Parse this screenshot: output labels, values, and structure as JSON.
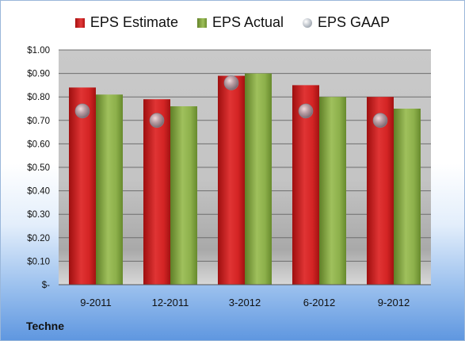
{
  "chart_data": {
    "type": "bar",
    "categories": [
      "9-2011",
      "12-2011",
      "3-2012",
      "6-2012",
      "9-2012"
    ],
    "series": [
      {
        "name": "EPS Estimate",
        "type": "bar",
        "color": "#c41e1e",
        "values": [
          0.84,
          0.79,
          0.89,
          0.85,
          0.8
        ]
      },
      {
        "name": "EPS Actual",
        "type": "bar",
        "color": "#86a846",
        "values": [
          0.81,
          0.76,
          0.9,
          0.8,
          0.75
        ]
      },
      {
        "name": "EPS GAAP",
        "type": "marker",
        "color": "#a9b0b8",
        "values": [
          0.74,
          0.7,
          0.86,
          0.74,
          0.7
        ]
      }
    ],
    "yticks": [
      "$1.00",
      "$0.90",
      "$0.80",
      "$0.70",
      "$0.60",
      "$0.50",
      "$0.40",
      "$0.30",
      "$0.20",
      "$0.10",
      "$-"
    ],
    "ylim": [
      0,
      1.0
    ],
    "grid": true,
    "legend": "top",
    "footer": "Techne"
  }
}
